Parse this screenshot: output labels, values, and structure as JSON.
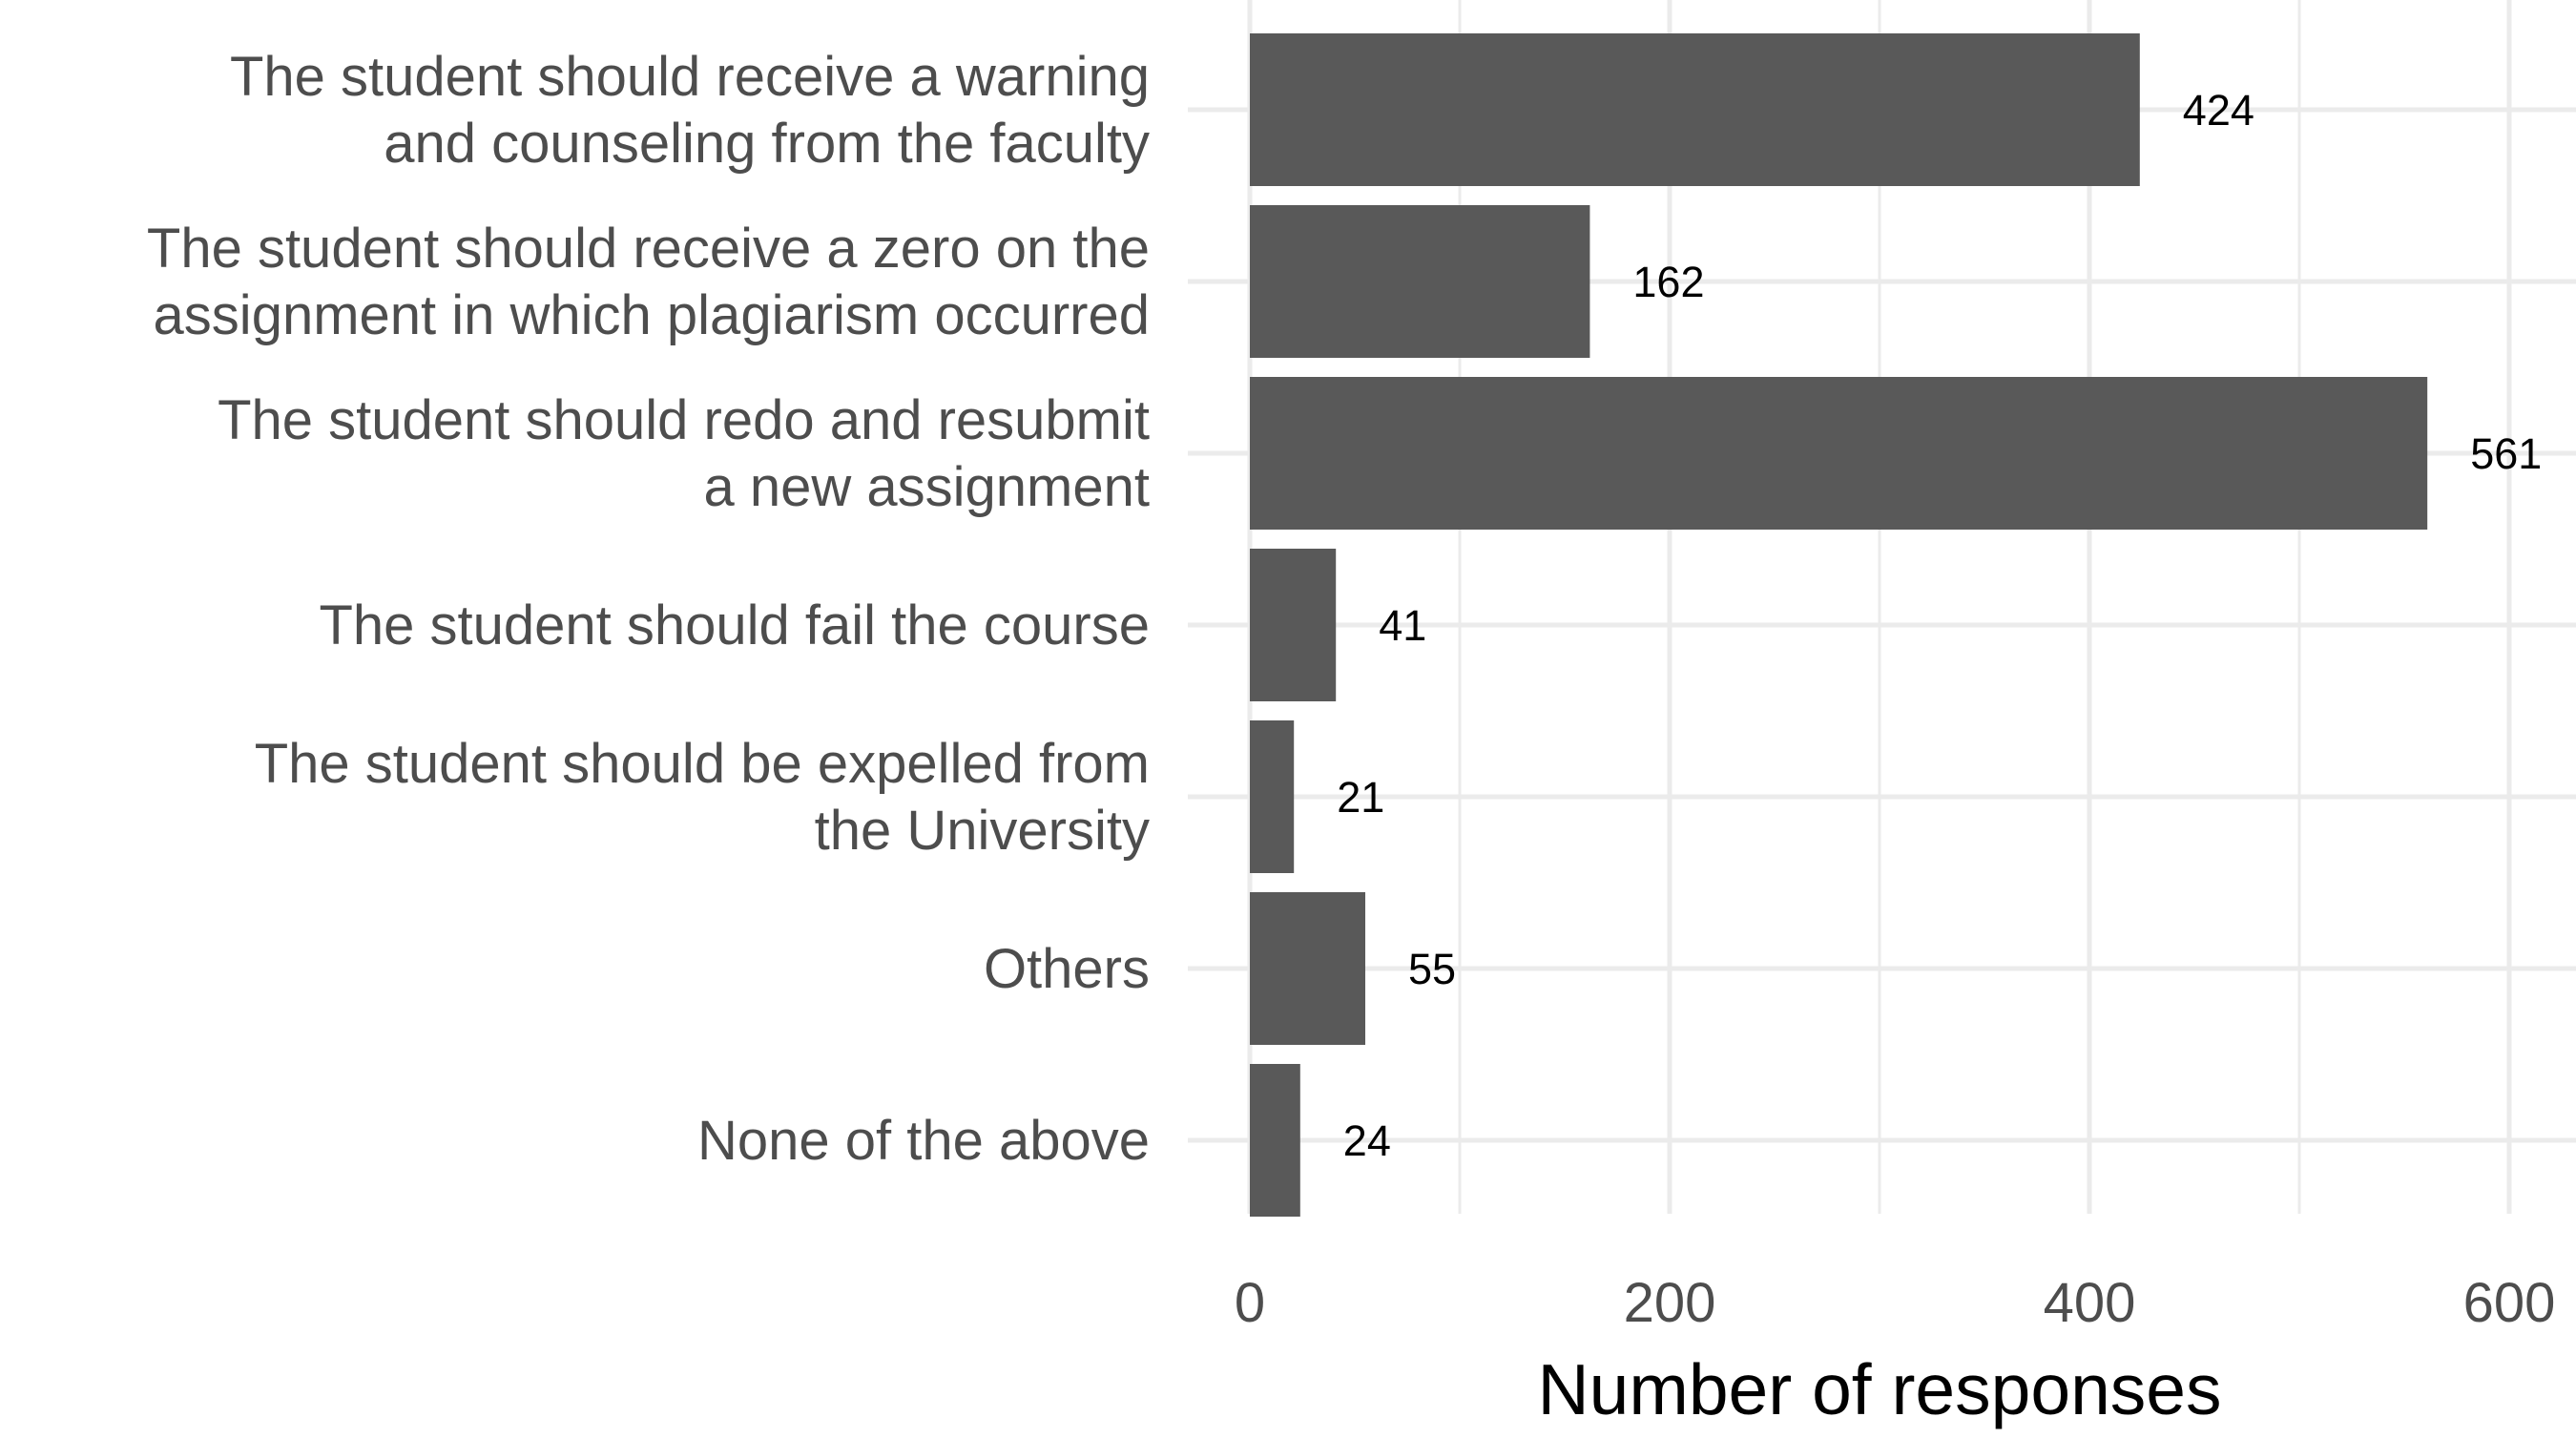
{
  "chart_data": {
    "type": "bar",
    "orientation": "horizontal",
    "categories": [
      [
        "The student should receive a warning ",
        "and counseling from the faculty"
      ],
      [
        "The student should receive a zero on the",
        "assignment in which plagiarism occurred"
      ],
      [
        "The student should redo and resubmit",
        "a new assignment"
      ],
      [
        "The student should fail the course"
      ],
      [
        "The student should be expelled from ",
        "the University"
      ],
      [
        "Others"
      ],
      [
        "None of the above"
      ]
    ],
    "values": [
      424,
      162,
      561,
      41,
      21,
      55,
      24
    ],
    "data_labels": [
      "424",
      "162",
      "561",
      "41",
      "21",
      "55",
      "24"
    ],
    "xticks": [
      "0",
      "200",
      "400",
      "600"
    ],
    "xlim": [
      0,
      630
    ],
    "xlabel": "Number of responses",
    "ylabel": "",
    "title": "",
    "grid": true,
    "legend": "none",
    "bar_color": "#595959",
    "grid_color": "#ebebeb"
  }
}
